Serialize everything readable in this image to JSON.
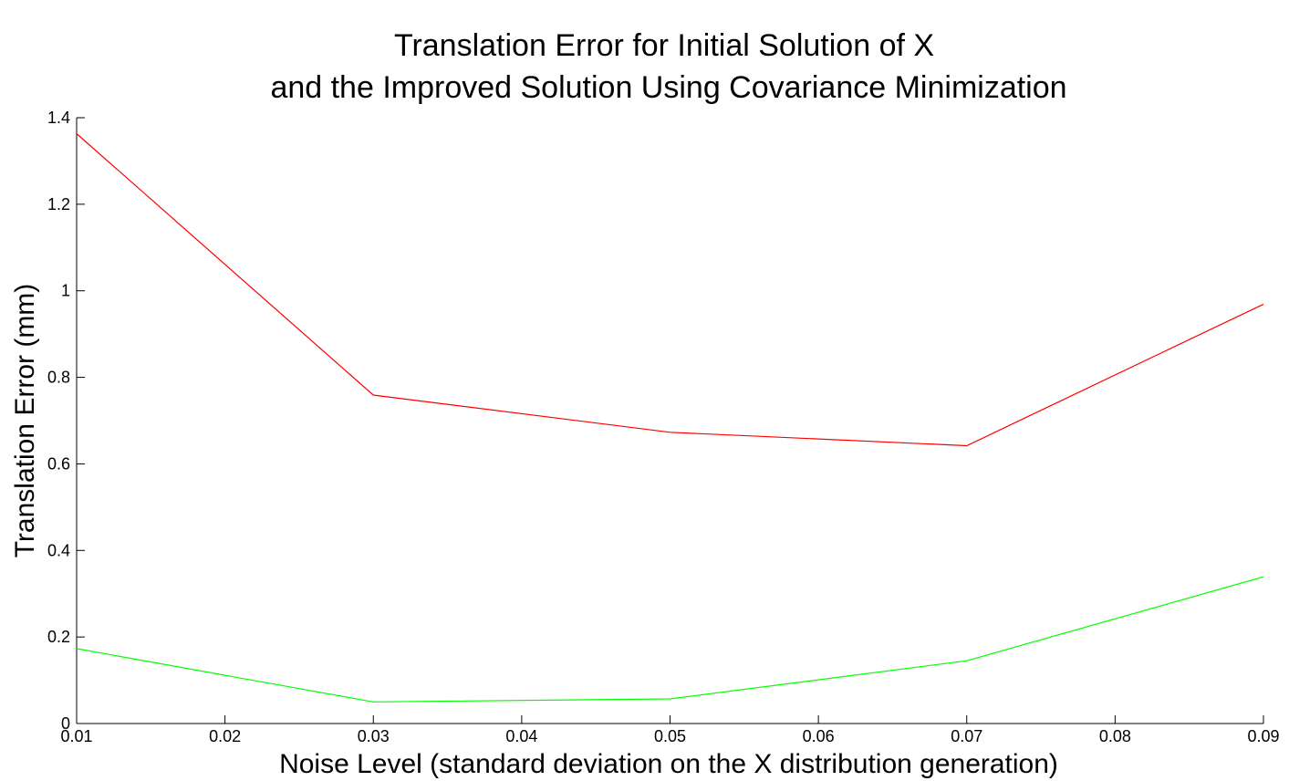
{
  "chart_data": {
    "type": "line",
    "title_lines": [
      "Translation Error for Initial Solution of X",
      "and the Improved Solution Using Covariance Minimization"
    ],
    "xlabel": "Noise Level (standard deviation on the X distribution generation)",
    "ylabel": "Translation Error (mm)",
    "xlim": [
      0.01,
      0.09
    ],
    "ylim": [
      0,
      1.4
    ],
    "xticks": [
      0.01,
      0.02,
      0.03,
      0.04,
      0.05,
      0.06,
      0.07,
      0.08,
      0.09
    ],
    "xtick_labels": [
      "0.01",
      "0.02",
      "0.03",
      "0.04",
      "0.05",
      "0.06",
      "0.07",
      "0.08",
      "0.09"
    ],
    "yticks": [
      0,
      0.2,
      0.4,
      0.6,
      0.8,
      1,
      1.2,
      1.4
    ],
    "ytick_labels": [
      "0",
      "0.2",
      "0.4",
      "0.6",
      "0.8",
      "1",
      "1.2",
      "1.4"
    ],
    "grid": false,
    "x": [
      0.01,
      0.03,
      0.05,
      0.07,
      0.09
    ],
    "series": [
      {
        "values": [
          1.363,
          0.759,
          0.673,
          0.642,
          0.969
        ],
        "color": "#ff0000"
      },
      {
        "values": [
          0.173,
          0.05,
          0.057,
          0.145,
          0.339
        ],
        "color": "#00ff00"
      }
    ]
  }
}
